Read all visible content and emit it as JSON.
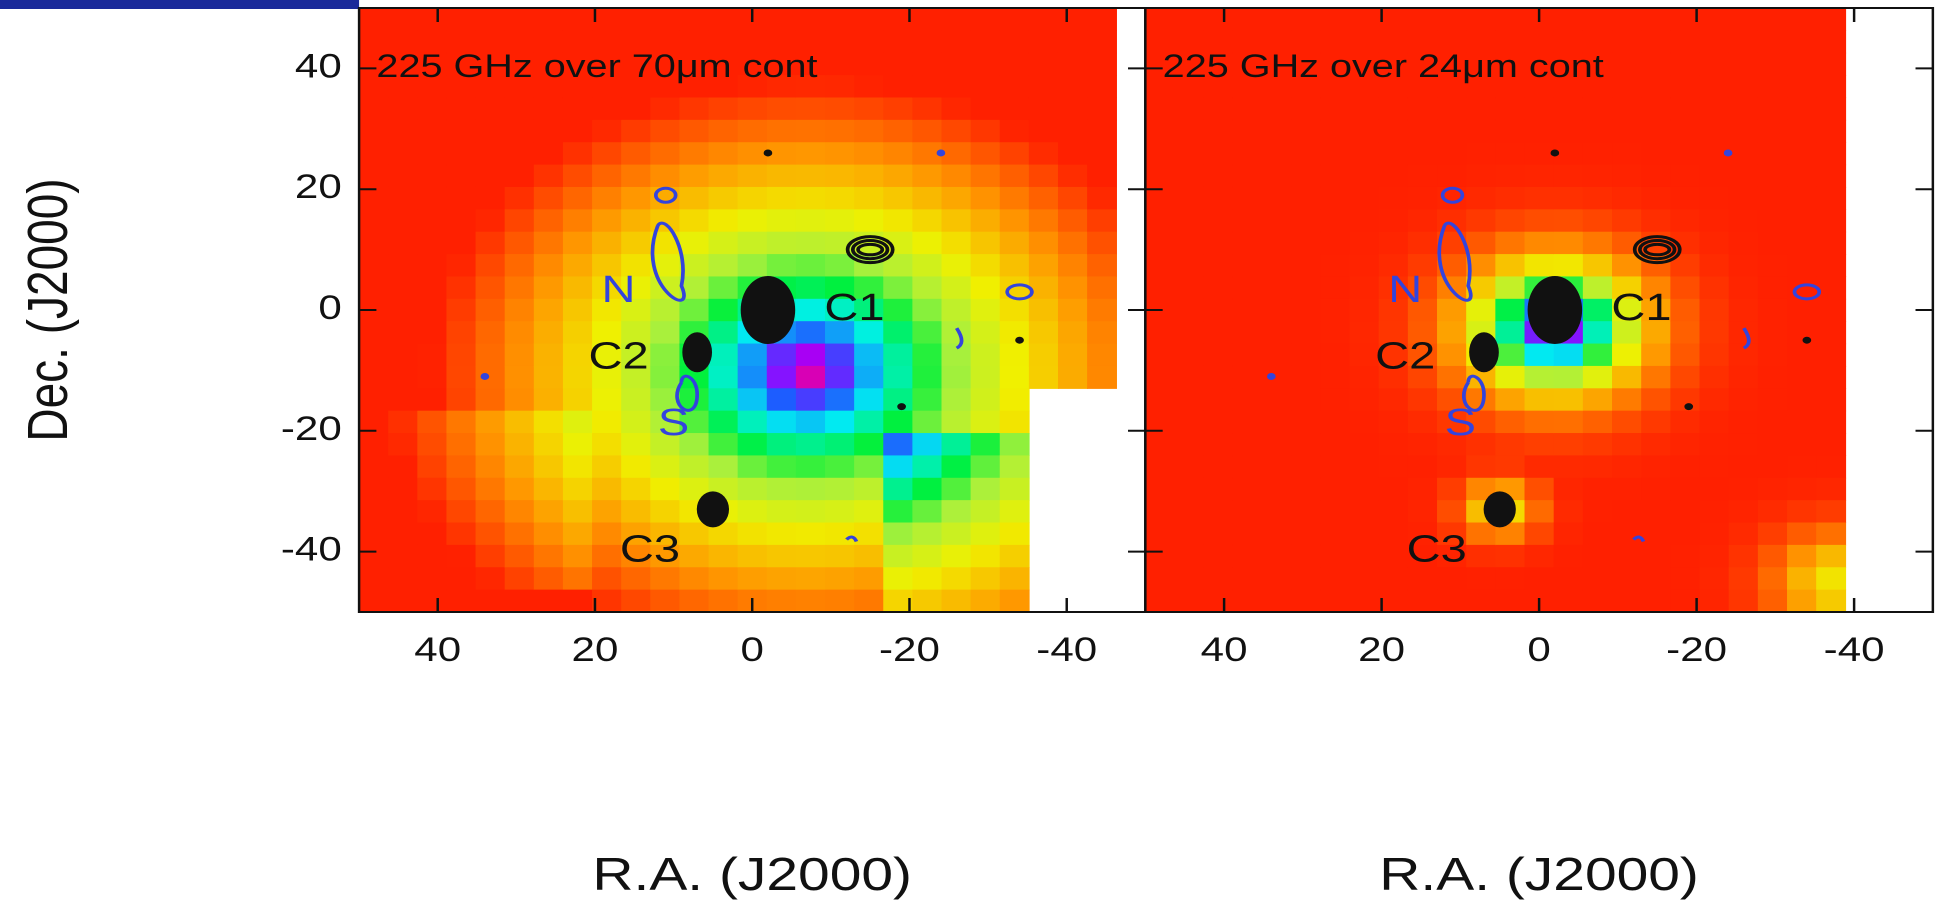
{
  "chart_data": [
    {
      "type": "map",
      "title": "225 GHz over 70μm cont",
      "xlabel": "R.A. (J2000)",
      "ylabel": "Dec. (J2000)",
      "xlim": [
        50,
        -50
      ],
      "ylim": [
        -50,
        50
      ],
      "xticks": [
        40,
        20,
        0,
        -20,
        -40
      ],
      "yticks": [
        -40,
        -20,
        0,
        20,
        40
      ],
      "ytick_labels": true,
      "annotations": [
        {
          "text": "C1",
          "x": -13,
          "y": 0
        },
        {
          "text": "C2",
          "x": 17,
          "y": -8
        },
        {
          "text": "C3",
          "x": 13,
          "y": -40
        },
        {
          "text": "N",
          "x": 17,
          "y": 3
        },
        {
          "text": "S",
          "x": 10,
          "y": -19
        }
      ]
    },
    {
      "type": "map",
      "title": "225 GHz over 24μm cont",
      "xlabel": "R.A. (J2000)",
      "xlim": [
        50,
        -50
      ],
      "ylim": [
        -50,
        50
      ],
      "xticks": [
        40,
        20,
        0,
        -20,
        -40
      ],
      "yticks": [
        -40,
        -20,
        0,
        20,
        40
      ],
      "ytick_labels": false,
      "annotations": [
        {
          "text": "C1",
          "x": -13,
          "y": 0
        },
        {
          "text": "C2",
          "x": 17,
          "y": -8
        },
        {
          "text": "C3",
          "x": 13,
          "y": -40
        },
        {
          "text": "N",
          "x": 17,
          "y": 3
        },
        {
          "text": "S",
          "x": 10,
          "y": -19
        }
      ]
    }
  ]
}
